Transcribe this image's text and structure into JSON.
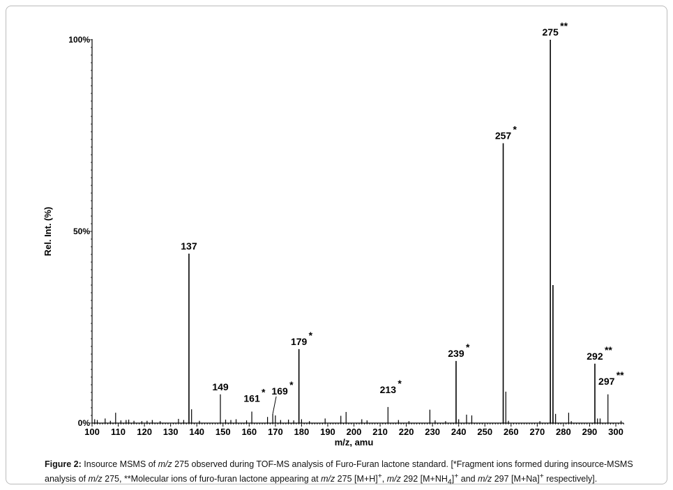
{
  "chart_data": {
    "type": "bar",
    "title": "",
    "xlabel": "m/z, amu",
    "ylabel": "Rel. Int. (%)",
    "xlim": [
      100,
      303
    ],
    "ylim": [
      0,
      100
    ],
    "xticks": [
      100,
      110,
      120,
      130,
      140,
      150,
      160,
      170,
      180,
      190,
      200,
      210,
      220,
      230,
      240,
      250,
      260,
      270,
      280,
      290,
      300
    ],
    "yticks": [
      {
        "value": 0,
        "label": "0%"
      },
      {
        "value": 50,
        "label": "50%"
      },
      {
        "value": 100,
        "label": "100%"
      }
    ],
    "peaks": [
      {
        "mz": 101,
        "int": 1.0
      },
      {
        "mz": 102,
        "int": 0.8
      },
      {
        "mz": 105,
        "int": 1.2
      },
      {
        "mz": 107,
        "int": 0.6
      },
      {
        "mz": 109,
        "int": 2.7
      },
      {
        "mz": 111,
        "int": 0.7
      },
      {
        "mz": 113,
        "int": 0.8
      },
      {
        "mz": 114,
        "int": 0.9
      },
      {
        "mz": 116,
        "int": 0.6
      },
      {
        "mz": 119,
        "int": 0.5
      },
      {
        "mz": 121,
        "int": 0.6
      },
      {
        "mz": 123,
        "int": 0.8
      },
      {
        "mz": 126,
        "int": 0.5
      },
      {
        "mz": 133,
        "int": 1.1
      },
      {
        "mz": 135,
        "int": 0.8
      },
      {
        "mz": 137,
        "int": 44.2
      },
      {
        "mz": 138,
        "int": 3.6
      },
      {
        "mz": 141,
        "int": 0.6
      },
      {
        "mz": 149,
        "int": 7.5
      },
      {
        "mz": 151,
        "int": 0.9
      },
      {
        "mz": 153,
        "int": 0.8
      },
      {
        "mz": 155,
        "int": 1.0
      },
      {
        "mz": 159,
        "int": 0.7
      },
      {
        "mz": 161,
        "int": 3.0
      },
      {
        "mz": 167,
        "int": 1.6
      },
      {
        "mz": 169,
        "int": 2.4
      },
      {
        "mz": 170,
        "int": 2.0
      },
      {
        "mz": 172,
        "int": 0.8
      },
      {
        "mz": 175,
        "int": 0.9
      },
      {
        "mz": 177,
        "int": 0.7
      },
      {
        "mz": 179,
        "int": 19.3
      },
      {
        "mz": 180,
        "int": 1.0
      },
      {
        "mz": 183,
        "int": 0.5
      },
      {
        "mz": 189,
        "int": 1.2
      },
      {
        "mz": 195,
        "int": 1.9
      },
      {
        "mz": 197,
        "int": 2.9
      },
      {
        "mz": 203,
        "int": 1.0
      },
      {
        "mz": 205,
        "int": 0.7
      },
      {
        "mz": 213,
        "int": 4.2
      },
      {
        "mz": 217,
        "int": 0.8
      },
      {
        "mz": 221,
        "int": 0.5
      },
      {
        "mz": 229,
        "int": 3.5
      },
      {
        "mz": 231,
        "int": 0.7
      },
      {
        "mz": 235,
        "int": 0.5
      },
      {
        "mz": 239,
        "int": 16.2
      },
      {
        "mz": 240,
        "int": 1.0
      },
      {
        "mz": 243,
        "int": 2.2
      },
      {
        "mz": 245,
        "int": 2.0
      },
      {
        "mz": 257,
        "int": 73.0
      },
      {
        "mz": 258,
        "int": 8.2
      },
      {
        "mz": 259,
        "int": 0.6
      },
      {
        "mz": 271,
        "int": 0.5
      },
      {
        "mz": 275,
        "int": 100
      },
      {
        "mz": 276,
        "int": 36.0
      },
      {
        "mz": 277,
        "int": 2.4
      },
      {
        "mz": 282,
        "int": 2.7
      },
      {
        "mz": 283,
        "int": 0.5
      },
      {
        "mz": 292,
        "int": 15.5
      },
      {
        "mz": 293,
        "int": 1.2
      },
      {
        "mz": 294,
        "int": 1.2
      },
      {
        "mz": 297,
        "int": 7.5
      },
      {
        "mz": 302,
        "int": 0.6
      }
    ],
    "annotations": [
      {
        "mz": 137,
        "label": "137",
        "mark": ""
      },
      {
        "mz": 149,
        "label": "149",
        "mark": ""
      },
      {
        "mz": 161,
        "label": "161",
        "mark": "*"
      },
      {
        "mz": 169,
        "label": "169",
        "mark": "*"
      },
      {
        "mz": 179,
        "label": "179",
        "mark": "*"
      },
      {
        "mz": 213,
        "label": "213",
        "mark": "*"
      },
      {
        "mz": 239,
        "label": "239",
        "mark": "*"
      },
      {
        "mz": 257,
        "label": "257",
        "mark": "*"
      },
      {
        "mz": 275,
        "label": "275",
        "mark": "**"
      },
      {
        "mz": 292,
        "label": "292",
        "mark": "**"
      },
      {
        "mz": 297,
        "label": "297",
        "mark": "**"
      }
    ]
  },
  "caption": {
    "label": "Figure 2:",
    "t1": " Insource MSMS of ",
    "mz": "m/z",
    "t2": " 275 observed during TOF-MS analysis of Furo-Furan lactone standard. [*Fragment ions formed during insource-MSMS analysis of ",
    "t3": " 275, **Molecular ions of furo-furan lactone appearing at ",
    "t4": " 275 [M+H]",
    "sup": "+",
    "t5": ", ",
    "t6": " 292 [M+NH",
    "sub": "4",
    "t7": "]",
    "t8": " and ",
    "t9": " 297 [M+Na]",
    "t10": " respectively]."
  }
}
